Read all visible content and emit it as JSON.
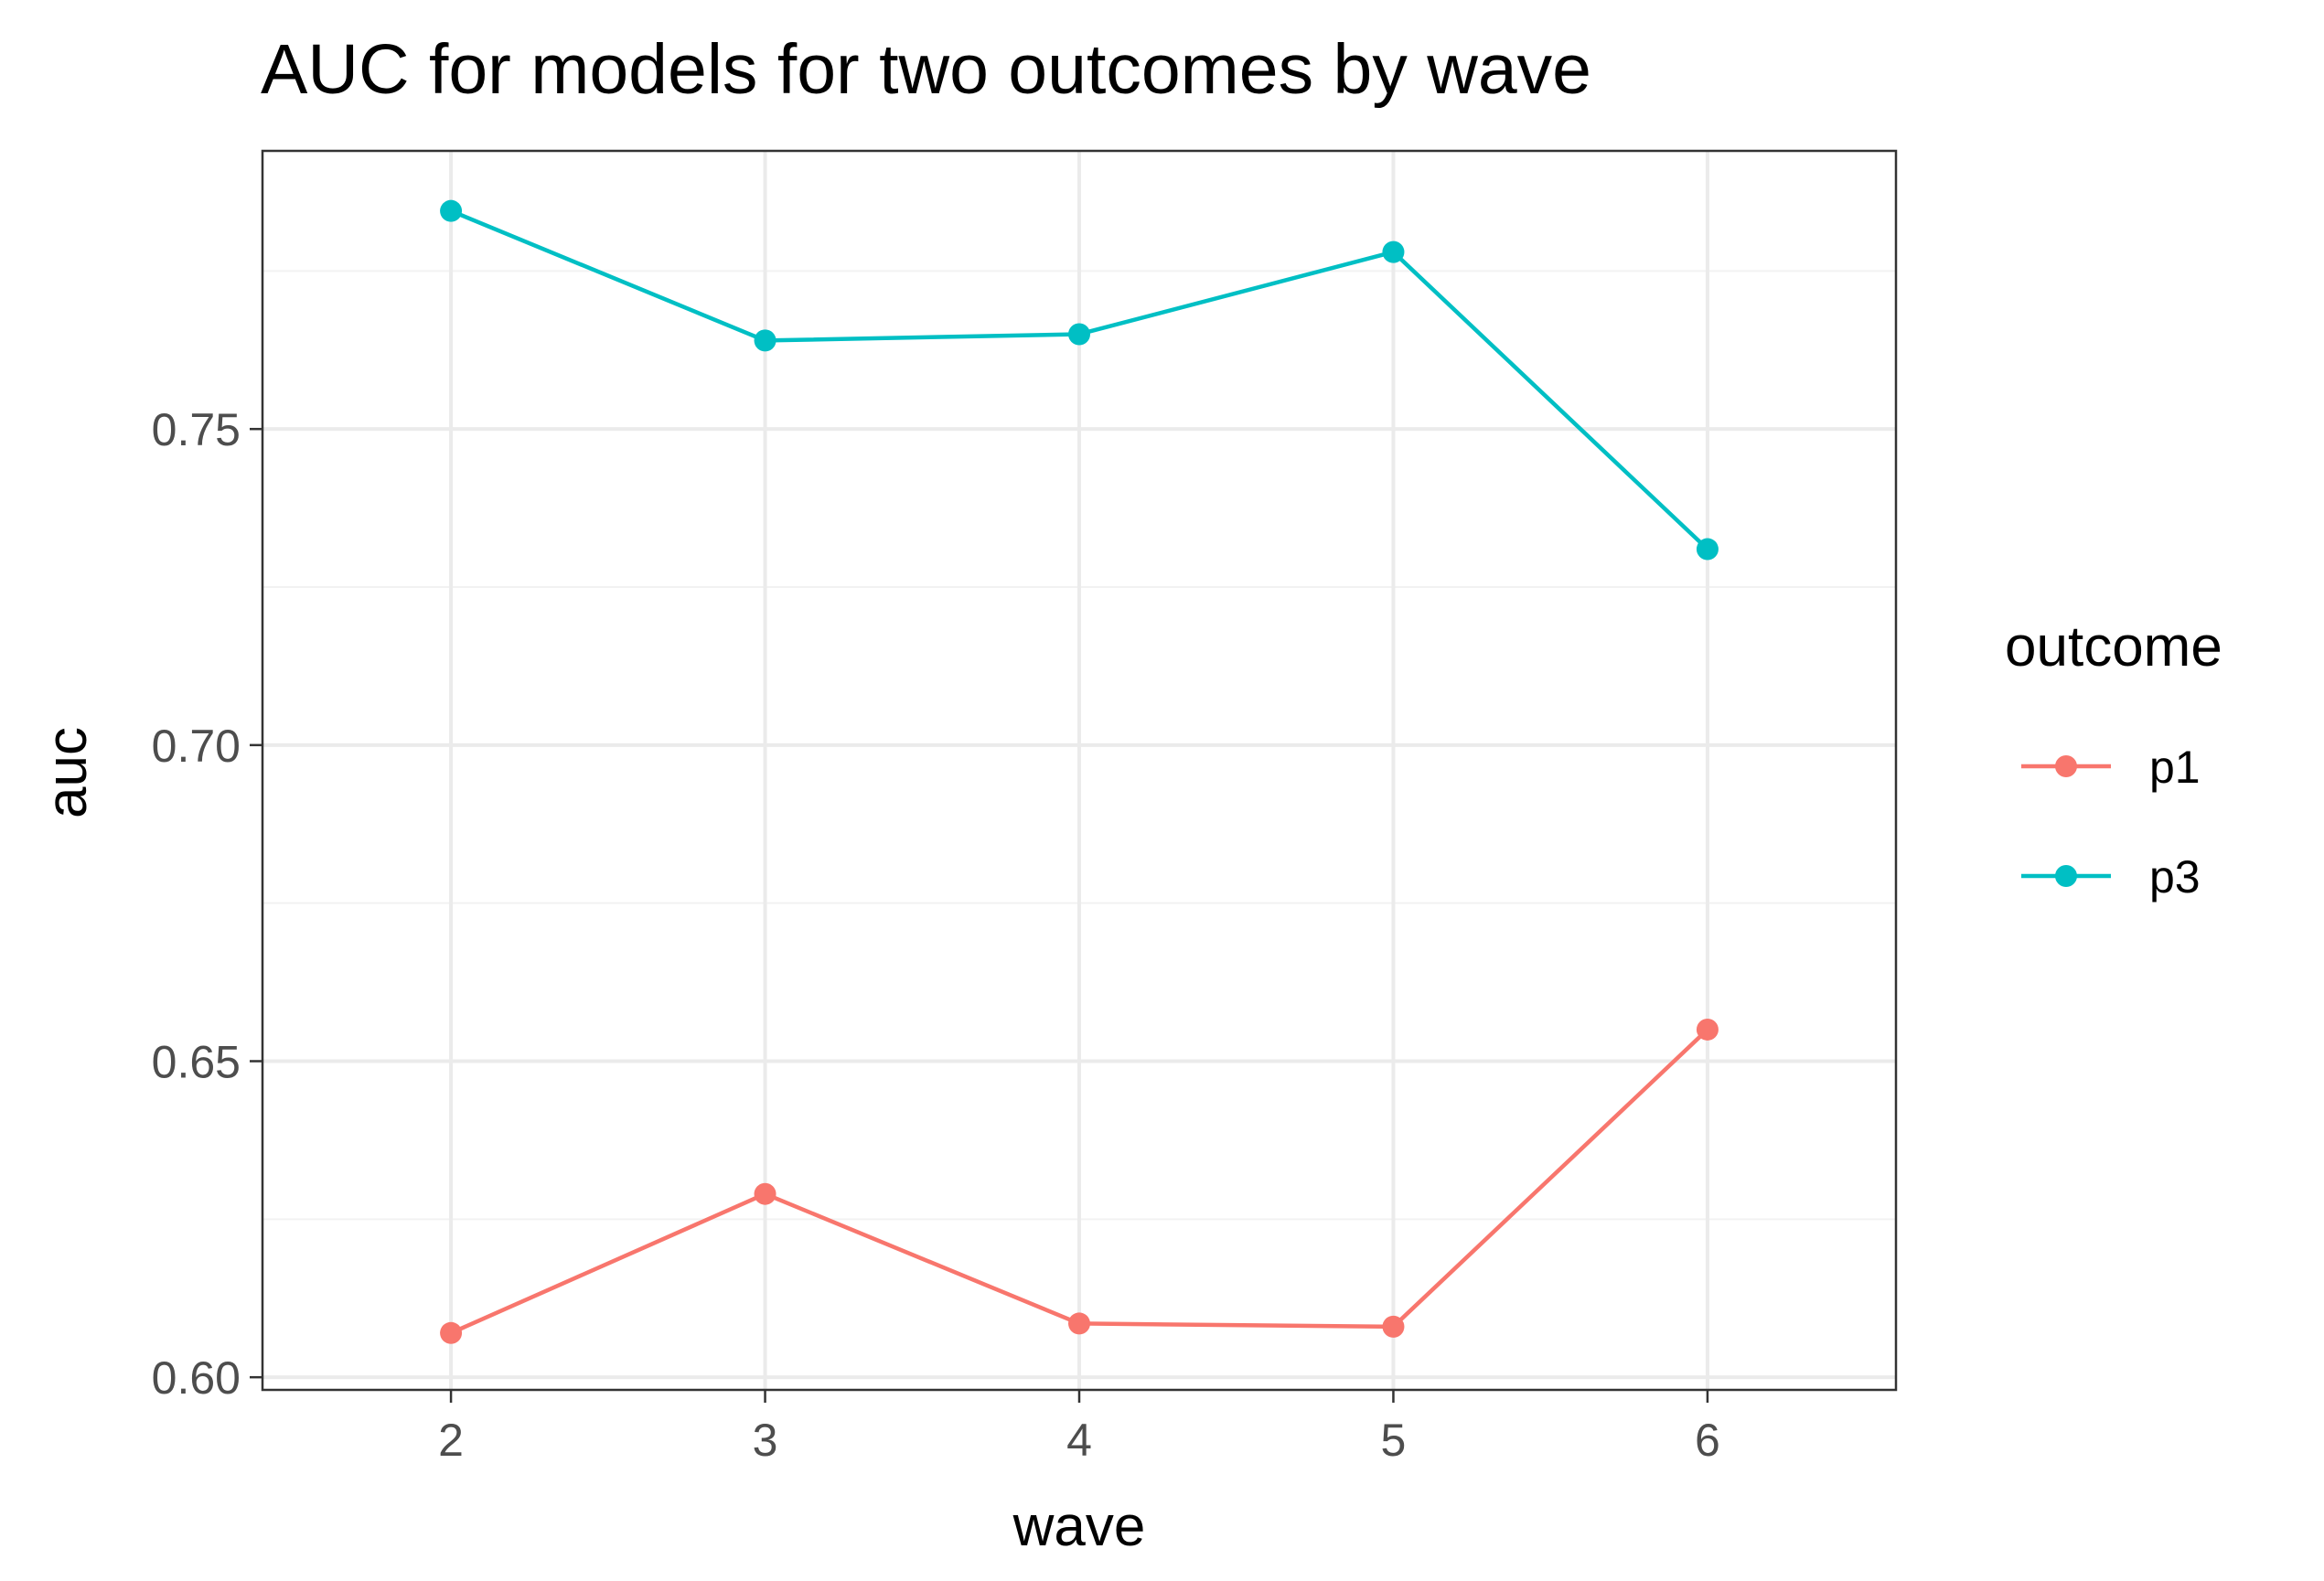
{
  "chart_data": {
    "type": "line",
    "title": "AUC for models for two outcomes by wave",
    "xlabel": "wave",
    "ylabel": "auc",
    "x": [
      2,
      3,
      4,
      5,
      6
    ],
    "xlim": [
      1.4,
      6.6
    ],
    "ylim": [
      0.598,
      0.794
    ],
    "x_ticks": [
      "2",
      "3",
      "4",
      "5",
      "6"
    ],
    "y_ticks": [
      "0.60",
      "0.65",
      "0.70",
      "0.75"
    ],
    "y_tick_values": [
      0.6,
      0.65,
      0.7,
      0.75
    ],
    "y_minor_values": [
      0.625,
      0.675,
      0.725,
      0.775
    ],
    "grid": true,
    "legend": {
      "title": "outcome",
      "placement": "right"
    },
    "series": [
      {
        "name": "p1",
        "color": "#F8766D",
        "values": [
          0.607,
          0.629,
          0.6085,
          0.608,
          0.655
        ]
      },
      {
        "name": "p3",
        "color": "#00BFC4",
        "values": [
          0.7845,
          0.764,
          0.765,
          0.778,
          0.731
        ]
      }
    ]
  }
}
